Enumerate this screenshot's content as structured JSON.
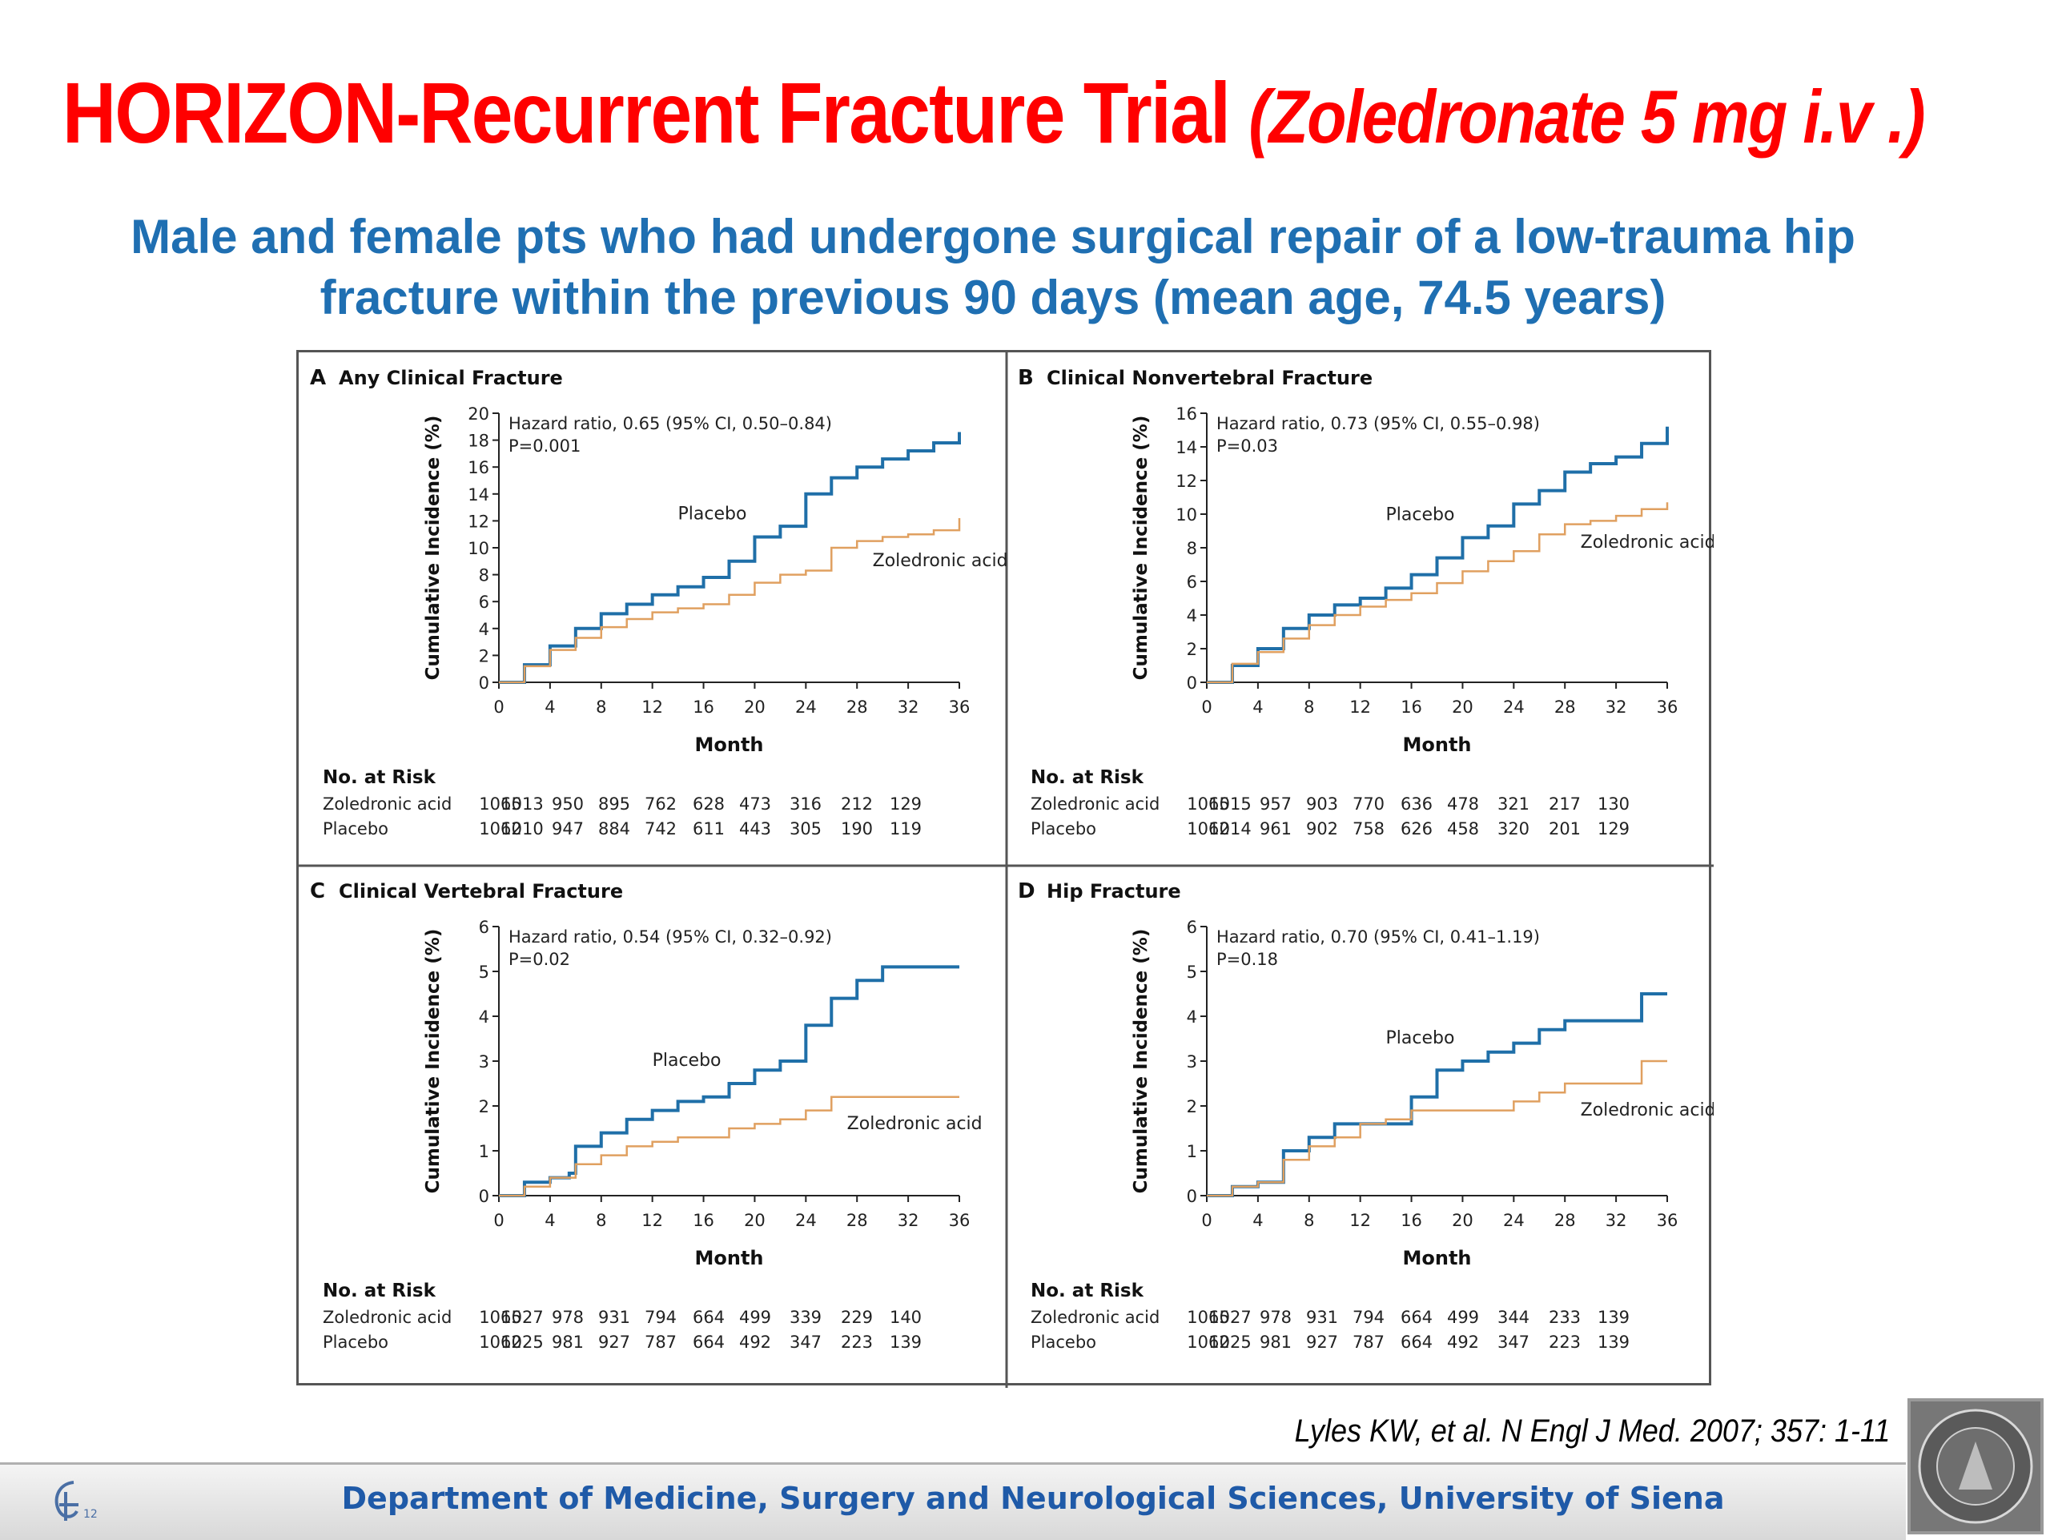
{
  "slide": {
    "title_main": "HORIZON-Recurrent Fracture Trial",
    "title_italic": "(Zoledronate 5 mg i.v .)",
    "subtitle_line1": "Male and female pts who had undergone surgical repair of a low-trauma hip",
    "subtitle_line2": "fracture within the previous 90 days (mean age, 74.5 years)",
    "citation": "Lyles KW, et al. N Engl J Med. 2007; 357: 1-11",
    "footer": "Department of Medicine, Surgery and Neurological Sciences, University of Siena",
    "logo_text": "12",
    "colors": {
      "title": "#ff0000",
      "subtitle": "#1f6fb2",
      "placebo": "#1f6fa8",
      "zoledronic": "#e0a060",
      "footer_text": "#1f5aa8"
    }
  },
  "chart_data": [
    {
      "type": "line",
      "panel": "A",
      "title": "Any Clinical Fracture",
      "xlabel": "Month",
      "ylabel": "Cumulative Incidence (%)",
      "xticks": [
        0,
        4,
        8,
        12,
        16,
        20,
        24,
        28,
        32,
        36
      ],
      "yticks": [
        0,
        2,
        4,
        6,
        8,
        10,
        12,
        14,
        16,
        18,
        20
      ],
      "ylim": [
        0,
        20
      ],
      "xlim": [
        0,
        36
      ],
      "hazard_ratio": "Hazard ratio, 0.65 (95% CI, 0.50–0.84)",
      "p_value": "P=0.001",
      "series": [
        {
          "name": "Placebo",
          "x": [
            0,
            2,
            4,
            6,
            8,
            10,
            12,
            14,
            16,
            18,
            20,
            22,
            24,
            26,
            28,
            30,
            32,
            34,
            36
          ],
          "y": [
            0,
            1.3,
            2.7,
            4,
            5.1,
            5.8,
            6.5,
            7.1,
            7.8,
            9,
            10.8,
            11.6,
            14,
            15.2,
            16,
            16.6,
            17.2,
            17.8,
            18.6
          ]
        },
        {
          "name": "Zoledronic acid",
          "x": [
            0,
            2,
            4,
            6,
            8,
            10,
            12,
            14,
            16,
            18,
            20,
            22,
            24,
            26,
            28,
            30,
            32,
            34,
            36
          ],
          "y": [
            0,
            1.2,
            2.4,
            3.3,
            4.1,
            4.7,
            5.2,
            5.5,
            5.8,
            6.5,
            7.4,
            8,
            8.3,
            10,
            10.5,
            10.8,
            11,
            11.3,
            12.2
          ]
        }
      ],
      "risk_table": {
        "heading": "No. at Risk",
        "rows": [
          {
            "label": "Zoledronic acid",
            "values": [
              "1065",
              "1013",
              "950",
              "895",
              "762",
              "628",
              "473",
              "316",
              "212",
              "129"
            ]
          },
          {
            "label": "Placebo",
            "values": [
              "1062",
              "1010",
              "947",
              "884",
              "742",
              "611",
              "443",
              "305",
              "190",
              "119"
            ]
          }
        ]
      }
    },
    {
      "type": "line",
      "panel": "B",
      "title": "Clinical Nonvertebral Fracture",
      "xlabel": "Month",
      "ylabel": "Cumulative Incidence (%)",
      "xticks": [
        0,
        4,
        8,
        12,
        16,
        20,
        24,
        28,
        32,
        36
      ],
      "yticks": [
        0,
        2,
        4,
        6,
        8,
        10,
        12,
        14,
        16
      ],
      "ylim": [
        0,
        16
      ],
      "xlim": [
        0,
        36
      ],
      "hazard_ratio": "Hazard ratio, 0.73 (95% CI, 0.55–0.98)",
      "p_value": "P=0.03",
      "series": [
        {
          "name": "Placebo",
          "x": [
            0,
            2,
            4,
            6,
            8,
            10,
            12,
            14,
            16,
            18,
            20,
            22,
            24,
            26,
            28,
            30,
            32,
            34,
            36
          ],
          "y": [
            0,
            1,
            2,
            3.2,
            4,
            4.6,
            5,
            5.6,
            6.4,
            7.4,
            8.6,
            9.3,
            10.6,
            11.4,
            12.5,
            13,
            13.4,
            14.2,
            15.2
          ]
        },
        {
          "name": "Zoledronic acid",
          "x": [
            0,
            2,
            4,
            6,
            8,
            10,
            12,
            14,
            16,
            18,
            20,
            22,
            24,
            26,
            28,
            30,
            32,
            34,
            36
          ],
          "y": [
            0,
            1.1,
            1.8,
            2.6,
            3.4,
            4,
            4.5,
            4.9,
            5.3,
            5.9,
            6.6,
            7.2,
            7.8,
            8.8,
            9.4,
            9.6,
            9.9,
            10.3,
            10.7
          ]
        }
      ],
      "risk_table": {
        "heading": "No. at Risk",
        "rows": [
          {
            "label": "Zoledronic acid",
            "values": [
              "1065",
              "1015",
              "957",
              "903",
              "770",
              "636",
              "478",
              "321",
              "217",
              "130"
            ]
          },
          {
            "label": "Placebo",
            "values": [
              "1062",
              "1014",
              "961",
              "902",
              "758",
              "626",
              "458",
              "320",
              "201",
              "129"
            ]
          }
        ]
      }
    },
    {
      "type": "line",
      "panel": "C",
      "title": "Clinical Vertebral Fracture",
      "xlabel": "Month",
      "ylabel": "Cumulative Incidence (%)",
      "xticks": [
        0,
        4,
        8,
        12,
        16,
        20,
        24,
        28,
        32,
        36
      ],
      "yticks": [
        0,
        1,
        2,
        3,
        4,
        5,
        6
      ],
      "ylim": [
        0,
        6
      ],
      "xlim": [
        0,
        36
      ],
      "hazard_ratio": "Hazard ratio, 0.54 (95% CI, 0.32–0.92)",
      "p_value": "P=0.02",
      "series": [
        {
          "name": "Placebo",
          "x": [
            0,
            2,
            4,
            5.5,
            6,
            8,
            10,
            12,
            14,
            16,
            18,
            20,
            22,
            24,
            26,
            28,
            30,
            32,
            36
          ],
          "y": [
            0,
            0.3,
            0.4,
            0.5,
            1.1,
            1.4,
            1.7,
            1.9,
            2.1,
            2.2,
            2.5,
            2.8,
            3,
            3.8,
            4.4,
            4.8,
            5.1,
            5.1,
            5.1
          ]
        },
        {
          "name": "Zoledronic acid",
          "x": [
            0,
            2,
            4,
            6,
            8,
            10,
            12,
            14,
            16,
            18,
            20,
            22,
            24,
            26,
            28,
            30,
            32,
            36
          ],
          "y": [
            0,
            0.2,
            0.4,
            0.7,
            0.9,
            1.1,
            1.2,
            1.3,
            1.3,
            1.5,
            1.6,
            1.7,
            1.9,
            2.2,
            2.2,
            2.2,
            2.2,
            2.2
          ]
        }
      ],
      "risk_table": {
        "heading": "No. at Risk",
        "rows": [
          {
            "label": "Zoledronic acid",
            "values": [
              "1065",
              "1027",
              "978",
              "931",
              "794",
              "664",
              "499",
              "339",
              "229",
              "140"
            ]
          },
          {
            "label": "Placebo",
            "values": [
              "1062",
              "1025",
              "981",
              "927",
              "787",
              "664",
              "492",
              "347",
              "223",
              "139"
            ]
          }
        ]
      }
    },
    {
      "type": "line",
      "panel": "D",
      "title": "Hip Fracture",
      "xlabel": "Month",
      "ylabel": "Cumulative Incidence (%)",
      "xticks": [
        0,
        4,
        8,
        12,
        16,
        20,
        24,
        28,
        32,
        36
      ],
      "yticks": [
        0,
        1,
        2,
        3,
        4,
        5,
        6
      ],
      "ylim": [
        0,
        6
      ],
      "xlim": [
        0,
        36
      ],
      "hazard_ratio": "Hazard ratio, 0.70 (95% CI, 0.41–1.19)",
      "p_value": "P=0.18",
      "series": [
        {
          "name": "Placebo",
          "x": [
            0,
            2,
            4,
            6,
            8,
            10,
            12,
            14,
            16,
            18,
            20,
            22,
            24,
            26,
            28,
            30,
            32,
            34,
            36
          ],
          "y": [
            0,
            0.2,
            0.3,
            1,
            1.3,
            1.6,
            1.6,
            1.6,
            2.2,
            2.8,
            3,
            3.2,
            3.4,
            3.7,
            3.9,
            3.9,
            3.9,
            4.5,
            4.5
          ]
        },
        {
          "name": "Zoledronic acid",
          "x": [
            0,
            2,
            4,
            6,
            8,
            10,
            12,
            14,
            16,
            18,
            20,
            22,
            24,
            26,
            28,
            30,
            32,
            34,
            36
          ],
          "y": [
            0,
            0.2,
            0.3,
            0.8,
            1.1,
            1.3,
            1.6,
            1.7,
            1.9,
            1.9,
            1.9,
            1.9,
            2.1,
            2.3,
            2.5,
            2.5,
            2.5,
            3,
            3
          ]
        }
      ],
      "risk_table": {
        "heading": "No. at Risk",
        "rows": [
          {
            "label": "Zoledronic acid",
            "values": [
              "1065",
              "1027",
              "978",
              "931",
              "794",
              "664",
              "499",
              "344",
              "233",
              "139"
            ]
          },
          {
            "label": "Placebo",
            "values": [
              "1062",
              "1025",
              "981",
              "927",
              "787",
              "664",
              "492",
              "347",
              "223",
              "139"
            ]
          }
        ]
      }
    }
  ]
}
